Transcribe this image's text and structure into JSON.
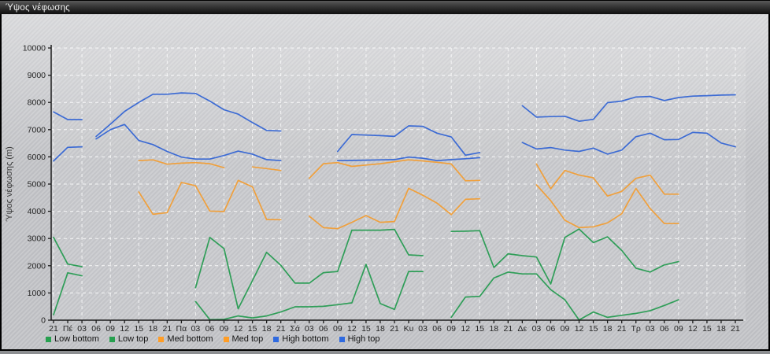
{
  "window": {
    "title": "Ύψος νέφωσης"
  },
  "chart_data": {
    "type": "line",
    "title": "Ύψος νέφωσης",
    "ylabel": "Ύψος νέφωσης (m)",
    "xlabel": "",
    "ylim": [
      0,
      10000
    ],
    "y_ticks": [
      0,
      1000,
      2000,
      3000,
      4000,
      5000,
      6000,
      7000,
      8000,
      9000,
      10000
    ],
    "x_tick_labels": [
      "21",
      "Πέ",
      "03",
      "06",
      "09",
      "12",
      "15",
      "18",
      "21",
      "Πα",
      "03",
      "06",
      "09",
      "12",
      "15",
      "18",
      "21",
      "Σά",
      "03",
      "06",
      "09",
      "12",
      "15",
      "18",
      "21",
      "Κυ",
      "03",
      "06",
      "09",
      "12",
      "15",
      "18",
      "21",
      "Δε",
      "03",
      "06",
      "09",
      "12",
      "15",
      "18",
      "21",
      "Τρ",
      "03",
      "06",
      "09",
      "12",
      "15",
      "18",
      "21"
    ],
    "grid": "white dashed gridlines, horizontal every 1000 m, vertical every 2 ticks",
    "legend_position": "bottom",
    "units": "m",
    "series": [
      {
        "name": "Low bottom",
        "color": "#2f9e58",
        "segments": [
          [
            [
              0,
              200
            ],
            [
              1,
              1740
            ],
            [
              2,
              1630
            ]
          ],
          [
            [
              10,
              685
            ],
            [
              11,
              20
            ],
            [
              12,
              30
            ],
            [
              13,
              155
            ],
            [
              14,
              85
            ],
            [
              15,
              155
            ],
            [
              16,
              300
            ],
            [
              17,
              490
            ],
            [
              18,
              490
            ],
            [
              19,
              510
            ],
            [
              20,
              570
            ],
            [
              21,
              635
            ],
            [
              22,
              2050
            ],
            [
              23,
              610
            ],
            [
              24,
              395
            ],
            [
              25,
              1790
            ],
            [
              26,
              1790
            ]
          ],
          [
            [
              28,
              105
            ],
            [
              29,
              850
            ],
            [
              30,
              875
            ],
            [
              31,
              1550
            ],
            [
              32,
              1765
            ],
            [
              33,
              1700
            ],
            [
              34,
              1700
            ],
            [
              35,
              1120
            ],
            [
              36,
              750
            ],
            [
              37,
              10
            ],
            [
              38,
              300
            ],
            [
              39,
              105
            ],
            [
              40,
              180
            ],
            [
              41,
              250
            ],
            [
              42,
              350
            ],
            [
              43,
              540
            ],
            [
              44,
              750
            ]
          ]
        ]
      },
      {
        "name": "Low top",
        "color": "#2f9e58",
        "segments": [
          [
            [
              0,
              3040
            ],
            [
              1,
              2060
            ],
            [
              2,
              1965
            ]
          ],
          [
            [
              10,
              1195
            ],
            [
              11,
              3040
            ],
            [
              12,
              2630
            ],
            [
              13,
              420
            ],
            [
              14,
              1450
            ],
            [
              15,
              2495
            ],
            [
              16,
              2015
            ],
            [
              17,
              1360
            ],
            [
              18,
              1360
            ],
            [
              19,
              1745
            ],
            [
              20,
              1790
            ],
            [
              21,
              3305
            ],
            [
              22,
              3305
            ],
            [
              23,
              3305
            ],
            [
              24,
              3335
            ],
            [
              25,
              2400
            ],
            [
              26,
              2370
            ]
          ],
          [
            [
              28,
              3260
            ],
            [
              29,
              3270
            ],
            [
              30,
              3290
            ],
            [
              31,
              1935
            ],
            [
              32,
              2440
            ],
            [
              33,
              2370
            ],
            [
              34,
              2320
            ],
            [
              35,
              1330
            ],
            [
              36,
              3040
            ],
            [
              37,
              3350
            ],
            [
              38,
              2850
            ],
            [
              39,
              3060
            ],
            [
              40,
              2560
            ],
            [
              41,
              1910
            ],
            [
              42,
              1770
            ],
            [
              43,
              2030
            ],
            [
              44,
              2150
            ]
          ]
        ]
      },
      {
        "name": "Med bottom",
        "color": "#f0a03c",
        "segments": [
          [
            [
              6,
              4710
            ],
            [
              7,
              3890
            ],
            [
              8,
              3950
            ],
            [
              9,
              5060
            ],
            [
              10,
              4940
            ],
            [
              11,
              4010
            ],
            [
              12,
              3990
            ],
            [
              13,
              5135
            ],
            [
              14,
              4900
            ],
            [
              15,
              3700
            ],
            [
              16,
              3690
            ]
          ],
          [
            [
              18,
              3820
            ],
            [
              19,
              3400
            ],
            [
              20,
              3360
            ],
            [
              21,
              3595
            ],
            [
              22,
              3845
            ],
            [
              23,
              3595
            ],
            [
              24,
              3625
            ],
            [
              25,
              4845
            ],
            [
              26,
              4590
            ],
            [
              27,
              4300
            ],
            [
              28,
              3880
            ],
            [
              29,
              4440
            ],
            [
              30,
              4460
            ]
          ],
          [
            [
              34,
              4970
            ],
            [
              35,
              4390
            ],
            [
              36,
              3670
            ],
            [
              37,
              3400
            ],
            [
              38,
              3430
            ],
            [
              39,
              3575
            ],
            [
              40,
              3910
            ],
            [
              41,
              4840
            ],
            [
              42,
              4100
            ],
            [
              43,
              3550
            ],
            [
              44,
              3550
            ]
          ]
        ]
      },
      {
        "name": "Med top",
        "color": "#f0a03c",
        "segments": [
          [
            [
              6,
              5860
            ],
            [
              7,
              5890
            ],
            [
              8,
              5730
            ],
            [
              9,
              5770
            ],
            [
              10,
              5790
            ],
            [
              11,
              5750
            ],
            [
              12,
              5600
            ]
          ],
          [
            [
              14,
              5630
            ],
            [
              15,
              5570
            ],
            [
              16,
              5500
            ]
          ],
          [
            [
              18,
              5210
            ],
            [
              19,
              5750
            ],
            [
              20,
              5790
            ],
            [
              21,
              5650
            ],
            [
              22,
              5700
            ],
            [
              23,
              5750
            ],
            [
              24,
              5820
            ],
            [
              25,
              5890
            ],
            [
              26,
              5850
            ],
            [
              27,
              5800
            ],
            [
              28,
              5740
            ],
            [
              29,
              5120
            ],
            [
              30,
              5135
            ]
          ],
          [
            [
              34,
              5740
            ],
            [
              35,
              4830
            ],
            [
              36,
              5500
            ],
            [
              37,
              5330
            ],
            [
              38,
              5230
            ],
            [
              39,
              4560
            ],
            [
              40,
              4730
            ],
            [
              41,
              5210
            ],
            [
              42,
              5330
            ],
            [
              43,
              4630
            ],
            [
              44,
              4630
            ]
          ]
        ]
      },
      {
        "name": "High bottom",
        "color": "#3c6bd4",
        "segments": [
          [
            [
              0,
              5850
            ],
            [
              1,
              6350
            ],
            [
              2,
              6370
            ]
          ],
          [
            [
              3,
              6660
            ],
            [
              4,
              7000
            ],
            [
              5,
              7190
            ],
            [
              6,
              6600
            ],
            [
              7,
              6450
            ],
            [
              8,
              6200
            ],
            [
              9,
              5990
            ],
            [
              10,
              5920
            ],
            [
              11,
              5920
            ],
            [
              12,
              6050
            ],
            [
              13,
              6210
            ],
            [
              14,
              6100
            ],
            [
              15,
              5900
            ],
            [
              16,
              5860
            ]
          ],
          [
            [
              20,
              5860
            ],
            [
              21,
              5870
            ],
            [
              22,
              5880
            ],
            [
              23,
              5890
            ],
            [
              24,
              5900
            ],
            [
              25,
              5990
            ],
            [
              26,
              5950
            ],
            [
              27,
              5860
            ],
            [
              28,
              5900
            ],
            [
              29,
              5930
            ],
            [
              30,
              5970
            ]
          ],
          [
            [
              33,
              6530
            ],
            [
              34,
              6290
            ],
            [
              35,
              6340
            ],
            [
              36,
              6250
            ],
            [
              37,
              6200
            ],
            [
              38,
              6320
            ],
            [
              39,
              6100
            ],
            [
              40,
              6250
            ],
            [
              41,
              6740
            ],
            [
              42,
              6870
            ],
            [
              43,
              6630
            ],
            [
              44,
              6640
            ],
            [
              45,
              6900
            ],
            [
              46,
              6870
            ],
            [
              47,
              6510
            ],
            [
              48,
              6370
            ]
          ]
        ]
      },
      {
        "name": "High top",
        "color": "#3c6bd4",
        "segments": [
          [
            [
              0,
              7650
            ],
            [
              1,
              7370
            ],
            [
              2,
              7370
            ]
          ],
          [
            [
              3,
              6750
            ],
            [
              4,
              7200
            ],
            [
              5,
              7670
            ],
            [
              6,
              8000
            ],
            [
              7,
              8300
            ],
            [
              8,
              8300
            ],
            [
              9,
              8350
            ],
            [
              10,
              8330
            ],
            [
              11,
              8050
            ],
            [
              12,
              7730
            ],
            [
              13,
              7570
            ],
            [
              14,
              7260
            ],
            [
              15,
              6970
            ],
            [
              16,
              6950
            ]
          ],
          [
            [
              20,
              6200
            ],
            [
              21,
              6820
            ],
            [
              22,
              6800
            ],
            [
              23,
              6780
            ],
            [
              24,
              6750
            ],
            [
              25,
              7140
            ],
            [
              26,
              7120
            ],
            [
              27,
              6870
            ],
            [
              28,
              6730
            ],
            [
              29,
              6060
            ],
            [
              30,
              6160
            ]
          ],
          [
            [
              33,
              7880
            ],
            [
              34,
              7460
            ],
            [
              35,
              7480
            ],
            [
              36,
              7490
            ],
            [
              37,
              7310
            ],
            [
              38,
              7380
            ],
            [
              39,
              7990
            ],
            [
              40,
              8050
            ],
            [
              41,
              8200
            ],
            [
              42,
              8220
            ],
            [
              43,
              8070
            ],
            [
              44,
              8180
            ],
            [
              45,
              8230
            ],
            [
              46,
              8250
            ],
            [
              47,
              8270
            ],
            [
              48,
              8280
            ]
          ]
        ]
      },
      {
        "name": "_legend_only",
        "color": "",
        "segments": []
      }
    ],
    "legend": [
      {
        "label": "Low bottom",
        "color": "#27a04f"
      },
      {
        "label": "Low top",
        "color": "#27a04f"
      },
      {
        "label": "Med bottom",
        "color": "#ff9d26"
      },
      {
        "label": "Med top",
        "color": "#ff9d26"
      },
      {
        "label": "High bottom",
        "color": "#2f6ae0"
      },
      {
        "label": "High top",
        "color": "#2f6ae0"
      }
    ]
  }
}
